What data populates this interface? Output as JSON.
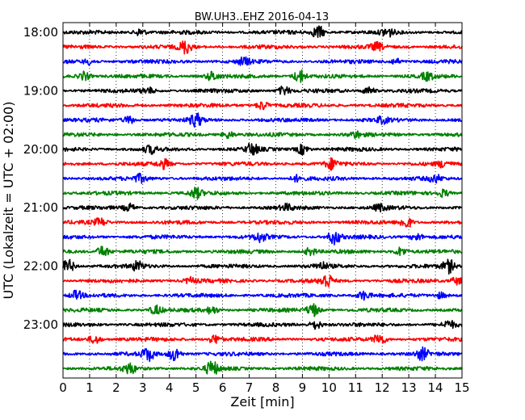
{
  "chart_data": {
    "type": "line",
    "title": "BW.UH3..EHZ 2016-04-13",
    "xlabel": "Zeit  [min]",
    "ylabel": "UTC (Lokalzeit = UTC + 02:00)",
    "xlim": [
      0,
      15
    ],
    "x_ticks": [
      "0",
      "1",
      "2",
      "3",
      "4",
      "5",
      "6",
      "7",
      "8",
      "9",
      "10",
      "11",
      "12",
      "13",
      "14",
      "15"
    ],
    "y_ticks": [
      {
        "label": "18:00",
        "row": 0
      },
      {
        "label": "19:00",
        "row": 4
      },
      {
        "label": "20:00",
        "row": 8
      },
      {
        "label": "21:00",
        "row": 12
      },
      {
        "label": "22:00",
        "row": 16
      },
      {
        "label": "23:00",
        "row": 20
      }
    ],
    "grid": {
      "x": "dotted",
      "y": "off"
    },
    "minutes_per_trace": 15,
    "color_cycle": [
      "#000000",
      "#ff0000",
      "#0000ff",
      "#008000"
    ],
    "traces": [
      {
        "start": "18:00",
        "events": [
          {
            "t": 2.9,
            "a": 0.5
          },
          {
            "t": 9.6,
            "a": 0.9
          },
          {
            "t": 12.2,
            "a": 0.6
          }
        ]
      },
      {
        "start": "18:15",
        "events": [
          {
            "t": 4.6,
            "a": 0.9
          },
          {
            "t": 11.8,
            "a": 0.5
          }
        ]
      },
      {
        "start": "18:30",
        "events": [
          {
            "t": 1.0,
            "a": 0.4
          },
          {
            "t": 6.8,
            "a": 0.5
          },
          {
            "t": 12.5,
            "a": 0.4
          }
        ]
      },
      {
        "start": "18:45",
        "events": [
          {
            "t": 0.8,
            "a": 0.6
          },
          {
            "t": 5.6,
            "a": 0.6
          },
          {
            "t": 8.9,
            "a": 0.9
          },
          {
            "t": 13.7,
            "a": 0.5
          }
        ]
      },
      {
        "start": "19:00",
        "events": [
          {
            "t": 3.2,
            "a": 0.4
          },
          {
            "t": 8.3,
            "a": 0.6
          },
          {
            "t": 11.5,
            "a": 0.5
          }
        ]
      },
      {
        "start": "19:15",
        "events": [
          {
            "t": 7.5,
            "a": 0.6
          }
        ]
      },
      {
        "start": "19:30",
        "events": [
          {
            "t": 2.5,
            "a": 0.5
          },
          {
            "t": 5.0,
            "a": 0.9
          },
          {
            "t": 12.0,
            "a": 0.4
          }
        ]
      },
      {
        "start": "19:45",
        "events": [
          {
            "t": 6.2,
            "a": 0.5
          },
          {
            "t": 11.0,
            "a": 0.4
          }
        ]
      },
      {
        "start": "20:00",
        "events": [
          {
            "t": 3.3,
            "a": 0.5
          },
          {
            "t": 7.1,
            "a": 0.8
          },
          {
            "t": 9.0,
            "a": 0.7
          }
        ]
      },
      {
        "start": "20:15",
        "events": [
          {
            "t": 3.8,
            "a": 0.6
          },
          {
            "t": 10.1,
            "a": 0.7
          },
          {
            "t": 14.3,
            "a": 0.4
          }
        ]
      },
      {
        "start": "20:30",
        "events": [
          {
            "t": 2.9,
            "a": 0.5
          },
          {
            "t": 8.8,
            "a": 0.4
          },
          {
            "t": 14.0,
            "a": 0.5
          }
        ]
      },
      {
        "start": "20:45",
        "events": [
          {
            "t": 5.0,
            "a": 0.7
          },
          {
            "t": 14.3,
            "a": 0.5
          }
        ]
      },
      {
        "start": "21:00",
        "events": [
          {
            "t": 2.5,
            "a": 0.5
          },
          {
            "t": 8.4,
            "a": 0.4
          },
          {
            "t": 11.9,
            "a": 0.4
          }
        ]
      },
      {
        "start": "21:15",
        "events": [
          {
            "t": 1.4,
            "a": 0.5
          },
          {
            "t": 12.9,
            "a": 0.8
          }
        ]
      },
      {
        "start": "21:30",
        "events": [
          {
            "t": 7.4,
            "a": 0.6
          },
          {
            "t": 10.2,
            "a": 1.0
          },
          {
            "t": 13.3,
            "a": 0.5
          }
        ]
      },
      {
        "start": "21:45",
        "events": [
          {
            "t": 1.5,
            "a": 0.8
          },
          {
            "t": 9.3,
            "a": 0.5
          },
          {
            "t": 12.7,
            "a": 0.6
          }
        ]
      },
      {
        "start": "22:00",
        "events": [
          {
            "t": 0.2,
            "a": 0.9
          },
          {
            "t": 2.8,
            "a": 0.6
          },
          {
            "t": 9.7,
            "a": 0.5
          },
          {
            "t": 14.5,
            "a": 0.9
          }
        ]
      },
      {
        "start": "22:15",
        "events": [
          {
            "t": 4.8,
            "a": 0.4
          },
          {
            "t": 9.9,
            "a": 1.0
          },
          {
            "t": 14.8,
            "a": 0.5
          }
        ]
      },
      {
        "start": "22:30",
        "events": [
          {
            "t": 0.5,
            "a": 0.6
          },
          {
            "t": 11.3,
            "a": 0.6
          },
          {
            "t": 14.2,
            "a": 0.4
          }
        ]
      },
      {
        "start": "22:45",
        "events": [
          {
            "t": 3.5,
            "a": 0.6
          },
          {
            "t": 5.6,
            "a": 0.5
          },
          {
            "t": 9.4,
            "a": 0.9
          }
        ]
      },
      {
        "start": "23:00",
        "events": [
          {
            "t": 9.5,
            "a": 0.6
          },
          {
            "t": 14.5,
            "a": 0.5
          }
        ]
      },
      {
        "start": "23:15",
        "events": [
          {
            "t": 1.2,
            "a": 0.6
          },
          {
            "t": 5.7,
            "a": 0.6
          },
          {
            "t": 11.9,
            "a": 0.8
          }
        ]
      },
      {
        "start": "23:30",
        "events": [
          {
            "t": 3.2,
            "a": 0.9
          },
          {
            "t": 4.2,
            "a": 1.0
          },
          {
            "t": 13.5,
            "a": 0.8
          }
        ]
      },
      {
        "start": "23:45",
        "events": [
          {
            "t": 2.5,
            "a": 0.7
          },
          {
            "t": 5.6,
            "a": 1.0
          }
        ]
      }
    ]
  }
}
